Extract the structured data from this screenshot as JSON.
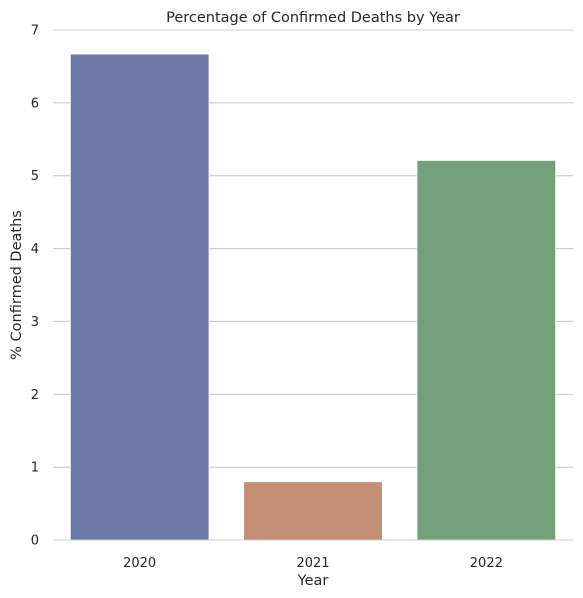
{
  "chart_data": {
    "type": "bar",
    "title": "Percentage of Confirmed Deaths by Year",
    "xlabel": "Year",
    "ylabel": "% Confirmed Deaths",
    "categories": [
      "2020",
      "2021",
      "2022"
    ],
    "values": [
      6.67,
      0.8,
      5.21
    ],
    "colors": [
      "#6b79a8",
      "#c28e76",
      "#73a078"
    ],
    "ylim": [
      0,
      7
    ],
    "yticks": [
      "0",
      "1",
      "2",
      "3",
      "4",
      "5",
      "6",
      "7"
    ],
    "grid": "horizontal"
  }
}
